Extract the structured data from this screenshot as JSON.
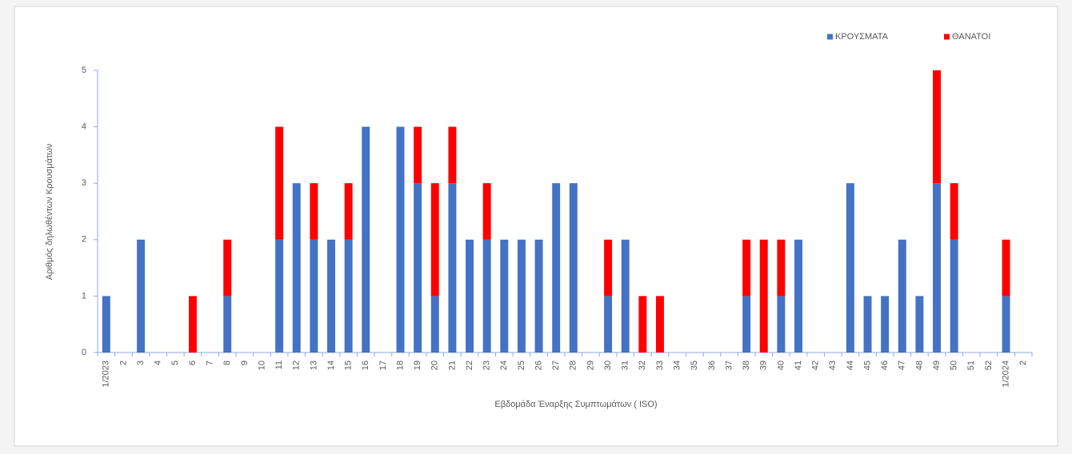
{
  "chart_data": {
    "type": "bar",
    "stacked": true,
    "y_label": "Αριθμός δηλωθέντων Κρουσμάτων",
    "x_label": "Εβδομάδα Έναρξης Συμπτωμάτων ( ISO)",
    "categories": [
      "1/2023",
      "2",
      "3",
      "4",
      "5",
      "6",
      "7",
      "8",
      "9",
      "10",
      "11",
      "12",
      "13",
      "14",
      "15",
      "16",
      "17",
      "18",
      "19",
      "20",
      "21",
      "22",
      "23",
      "24",
      "25",
      "26",
      "27",
      "28",
      "29",
      "30",
      "31",
      "32",
      "33",
      "34",
      "35",
      "36",
      "37",
      "38",
      "39",
      "40",
      "41",
      "42",
      "43",
      "44",
      "45",
      "46",
      "47",
      "48",
      "49",
      "50",
      "51",
      "52",
      "1/2024",
      "2"
    ],
    "series": [
      {
        "name": "ΚΡΟΥΣΜΑΤΑ",
        "color": "#4472c4",
        "values": [
          1,
          0,
          2,
          0,
          0,
          0,
          0,
          1,
          0,
          0,
          2,
          3,
          2,
          2,
          2,
          4,
          0,
          4,
          3,
          1,
          3,
          2,
          2,
          2,
          2,
          2,
          3,
          3,
          0,
          1,
          2,
          0,
          0,
          0,
          0,
          0,
          0,
          1,
          0,
          1,
          2,
          0,
          0,
          3,
          1,
          1,
          2,
          1,
          3,
          2,
          0,
          0,
          1,
          0
        ]
      },
      {
        "name": "ΘΑΝΑΤΟΙ",
        "color": "#ff0000",
        "values": [
          0,
          0,
          0,
          0,
          0,
          1,
          0,
          1,
          0,
          0,
          2,
          0,
          1,
          0,
          1,
          0,
          0,
          0,
          1,
          2,
          1,
          0,
          1,
          0,
          0,
          0,
          0,
          0,
          0,
          1,
          0,
          1,
          1,
          0,
          0,
          0,
          0,
          1,
          2,
          1,
          0,
          0,
          0,
          0,
          0,
          0,
          0,
          0,
          2,
          1,
          0,
          0,
          1,
          0
        ]
      }
    ],
    "ylim": [
      0,
      5
    ],
    "yticks": [
      0,
      1,
      2,
      3,
      4,
      5
    ],
    "grid": false,
    "legend": "top-right"
  }
}
